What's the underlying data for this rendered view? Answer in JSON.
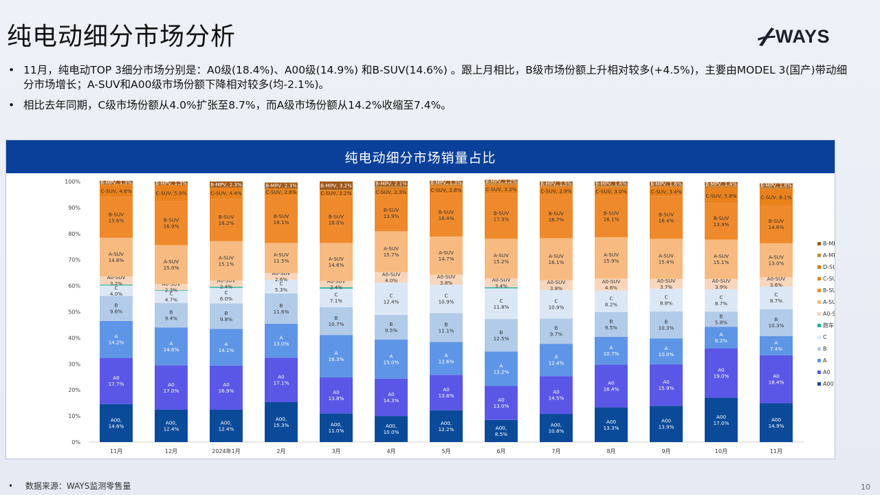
{
  "page": {
    "title": "纯电动细分市场分析",
    "logo_text": "WAYS",
    "bullets": [
      "11月，纯电动TOP 3细分市场分别是：A0级(18.4%)、A00级(14.9%) 和B-SUV(14.6%) 。跟上月相比，B级市场份额上升相对较多(+4.5%)，主要由MODEL 3(国产)带动细分市场增长；A-SUV和A00级市场份额下降相对较多(均-2.1%)。",
      "相比去年同期，C级市场份额从4.0%扩张至8.7%，而A级市场份额从14.2%收缩至7.4%。"
    ],
    "bullet_symbol": "•",
    "source_note": "数据来源：WAYS监测零售量",
    "page_number": "10"
  },
  "colors": {
    "header_bg": "#0a3f9a",
    "A00": "#0b4a99",
    "A0": "#5b57e6",
    "A": "#5f95e6",
    "B": "#b2cbe8",
    "C": "#dce7f5",
    "跑车": "#1ab39a",
    "A0-SUV": "#f8d6bd",
    "A-SUV": "#f7bb82",
    "B-SUV": "#ef8a2c",
    "C-SUV": "#e9821c",
    "D-SUV": "#d57a1c",
    "A-MPV": "#c88c3a",
    "B-MPV": "#a05a1b"
  },
  "chart_data": {
    "type": "bar",
    "stacked": true,
    "title": "纯电动细分市场销量占比",
    "categories": [
      "11月",
      "12月",
      "2024年1月",
      "2月",
      "3月",
      "4月",
      "5月",
      "6月",
      "7月",
      "8月",
      "9月",
      "10月",
      "11月"
    ],
    "ylim": [
      0,
      100
    ],
    "yticks": [
      "0%",
      "10%",
      "20%",
      "30%",
      "40%",
      "50%",
      "60%",
      "70%",
      "80%",
      "90%",
      "100%"
    ],
    "legend_position": "right",
    "series": [
      {
        "name": "A00",
        "values": [
          14.6,
          12.4,
          12.4,
          15.3,
          11.0,
          10.0,
          12.2,
          8.5,
          10.8,
          13.3,
          13.9,
          17.0,
          14.9
        ],
        "labels": [
          "A00,\n14.6%",
          "A00,\n12.4%",
          "A00,\n12.4%",
          "A00,\n15.3%",
          "A00,\n11.0%",
          "A00,\n10.0%",
          "A00,\n12.2%",
          "A00,\n8.5%",
          "A00,\n10.8%",
          "A00\n13.3%",
          "A00\n13.9%",
          "A00\n17.0%",
          "A00\n14.9%"
        ]
      },
      {
        "name": "A0",
        "values": [
          17.7,
          17.0,
          16.9,
          17.1,
          13.8,
          14.3,
          13.6,
          13.0,
          14.5,
          16.4,
          15.9,
          19.0,
          18.4
        ]
      },
      {
        "name": "A",
        "values": [
          14.2,
          14.6,
          14.1,
          13.0,
          16.3,
          15.0,
          12.6,
          13.2,
          12.4,
          10.7,
          10.0,
          8.2,
          7.4
        ]
      },
      {
        "name": "B",
        "values": [
          9.6,
          9.4,
          9.8,
          11.6,
          10.7,
          9.5,
          11.1,
          12.5,
          9.7,
          9.5,
          10.3,
          5.8,
          10.3
        ]
      },
      {
        "name": "C",
        "values": [
          4.0,
          4.7,
          6.0,
          5.3,
          7.1,
          12.4,
          10.9,
          11.8,
          10.9,
          8.2,
          8.8,
          8.7,
          8.7
        ]
      },
      {
        "name": "跑车",
        "values": [
          0.3,
          0.2,
          0.4,
          0.0,
          0.5,
          0.0,
          0.0,
          0.4,
          0.0,
          0.0,
          0.0,
          0.0,
          0.0
        ]
      },
      {
        "name": "A0-SUV",
        "values": [
          3.2,
          2.3,
          2.4,
          2.6,
          2.4,
          4.0,
          3.8,
          3.4,
          3.8,
          4.6,
          3.7,
          3.9,
          3.6
        ]
      },
      {
        "name": "A-SUV",
        "values": [
          14.8,
          15.0,
          15.1,
          11.5,
          14.6,
          15.7,
          14.7,
          15.2,
          16.1,
          15.9,
          15.4,
          15.1,
          13.0
        ]
      },
      {
        "name": "B-SUV",
        "values": [
          15.6,
          16.9,
          16.2,
          18.1,
          18.0,
          13.9,
          16.4,
          17.3,
          16.7,
          16.1,
          16.4,
          13.9,
          14.6
        ]
      },
      {
        "name": "C-SUV",
        "values": [
          4.6,
          5.9,
          4.4,
          2.8,
          2.2,
          2.3,
          2.8,
          3.2,
          2.9,
          3.0,
          3.4,
          5.8,
          6.1
        ]
      },
      {
        "name": "D-SUV",
        "values": [
          0.4,
          0.3,
          0.0,
          0.0,
          0.0,
          0.5,
          0.5,
          0.4,
          0.3,
          0.2,
          0.3,
          0.6,
          0.4
        ]
      },
      {
        "name": "A-MPV",
        "values": [
          0.0,
          0.0,
          0.0,
          0.0,
          0.2,
          0.5,
          0.4,
          0.6,
          0.4,
          0.5,
          0.2,
          0.4,
          0.3
        ]
      },
      {
        "name": "B-MPV",
        "values": [
          1.3,
          1.3,
          2.3,
          2.3,
          3.2,
          2.1,
          1.3,
          1.2,
          1.5,
          1.6,
          1.6,
          1.4,
          1.6
        ]
      }
    ],
    "labeled_series": [
      "A00",
      "A0",
      "A",
      "B",
      "C",
      "A0-SUV",
      "A-SUV",
      "B-SUV",
      "C-SUV",
      "B-MPV"
    ],
    "inline_label_series": [
      "C-SUV",
      "B-MPV"
    ],
    "legend": [
      "B-MPV",
      "A-MPV",
      "D-SUV",
      "C-SUV",
      "B-SUV",
      "A-SUV",
      "A0-SUV",
      "跑车",
      "C",
      "B",
      "A",
      "A0",
      "A00"
    ]
  }
}
